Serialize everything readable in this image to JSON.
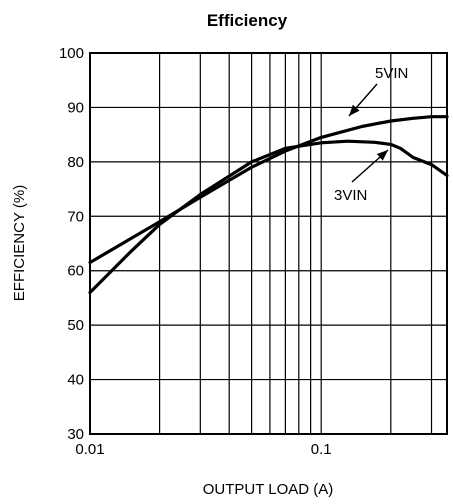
{
  "chart_data": {
    "type": "line",
    "title": "Efficiency",
    "xlabel": "OUTPUT LOAD (A)",
    "ylabel": "EFFICIENCY (%)",
    "xscale": "log",
    "xlim": [
      0.01,
      0.35
    ],
    "ylim": [
      30,
      100
    ],
    "x_tick_labels": [
      {
        "value": 0.01,
        "label": "0.01"
      },
      {
        "value": 0.1,
        "label": "0.1"
      }
    ],
    "y_ticks": [
      30,
      40,
      50,
      60,
      70,
      80,
      90,
      100
    ],
    "grid": true,
    "series": [
      {
        "name": "5VIN",
        "x": [
          0.01,
          0.02,
          0.03,
          0.05,
          0.07,
          0.1,
          0.15,
          0.2,
          0.25,
          0.3,
          0.35
        ],
        "y": [
          61.5,
          69,
          73.5,
          79,
          82,
          84.5,
          86.5,
          87.5,
          88,
          88.3,
          88.3
        ]
      },
      {
        "name": "3VIN",
        "x": [
          0.01,
          0.015,
          0.02,
          0.03,
          0.05,
          0.07,
          0.1,
          0.13,
          0.17,
          0.2,
          0.22,
          0.25,
          0.3,
          0.35
        ],
        "y": [
          56,
          63.5,
          68.5,
          74,
          80,
          82.5,
          83.5,
          83.8,
          83.6,
          83.2,
          82.5,
          80.8,
          79.5,
          77.5
        ]
      }
    ],
    "annotations": [
      {
        "text": "5VIN",
        "series": "5VIN"
      },
      {
        "text": "3VIN",
        "series": "3VIN"
      }
    ]
  }
}
